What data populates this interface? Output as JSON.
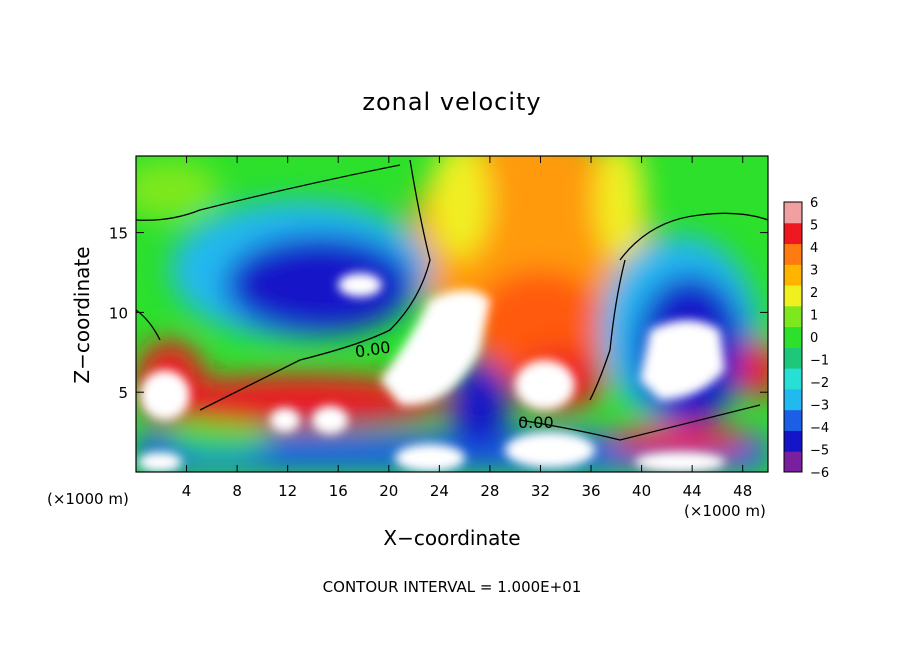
{
  "chart_data": {
    "type": "heatmap",
    "title": "zonal velocity",
    "xlabel": "X−coordinate",
    "ylabel": "Z−coordinate",
    "x_unit_note": "(×1000 m)",
    "x_ticks": [
      4,
      8,
      12,
      16,
      20,
      24,
      28,
      32,
      36,
      40,
      44,
      48
    ],
    "y_ticks": [
      5,
      10,
      15
    ],
    "xlim": [
      0,
      50
    ],
    "ylim": [
      0,
      19.8
    ],
    "colorbar": {
      "ticks": [
        6,
        5,
        4,
        3,
        2,
        1,
        0,
        -1,
        -2,
        -3,
        -4,
        -5,
        -6
      ],
      "range": [
        -6,
        6
      ]
    },
    "colors": {
      "scale": [
        "#7a1fa0",
        "#1515c8",
        "#1a5fe6",
        "#22b8f0",
        "#26e0d6",
        "#1ec87a",
        "#2ce02c",
        "#7ee81e",
        "#f0f020",
        "#ffb400",
        "#ff7a10",
        "#f01820",
        "#f0a0a0"
      ]
    },
    "contour_labels": [
      {
        "text": "0.00",
        "x": 18.8,
        "y": 7.8
      },
      {
        "text": "0.00",
        "x": 32.8,
        "y": 3.3
      }
    ],
    "footer": "CONTOUR INTERVAL = 1.000E+01"
  }
}
